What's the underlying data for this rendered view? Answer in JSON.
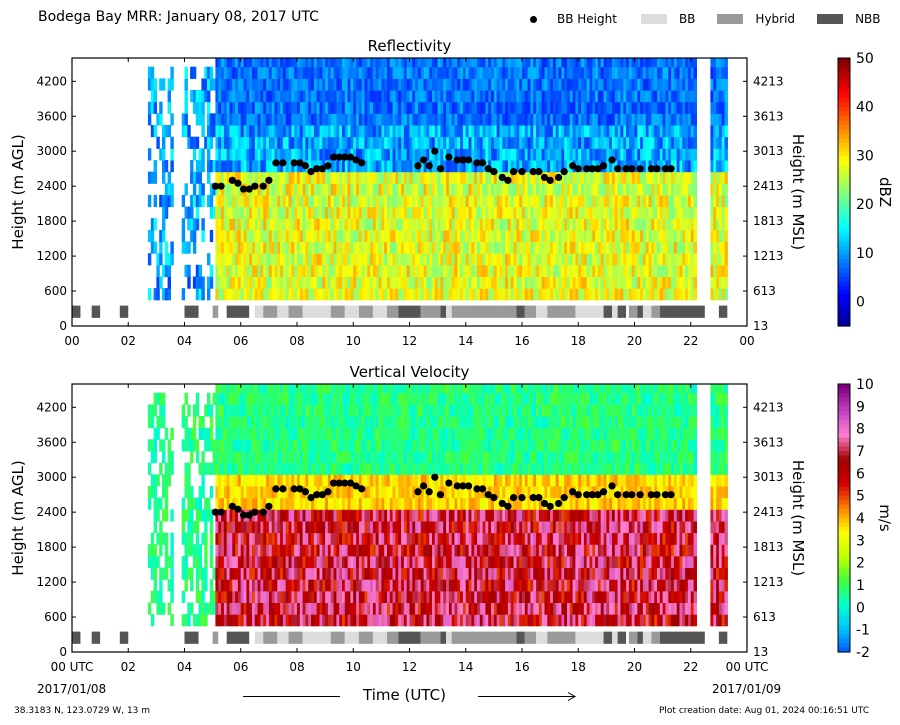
{
  "header": {
    "title": "Bodega Bay MRR:  January 08, 2017 UTC",
    "legend": [
      {
        "label": "BB Height",
        "kind": "dot",
        "color": "#000000"
      },
      {
        "label": "BB",
        "kind": "box",
        "color": "#dcdcdc"
      },
      {
        "label": "Hybrid",
        "kind": "box",
        "color": "#9a9a9a"
      },
      {
        "label": "NBB",
        "kind": "box",
        "color": "#555555"
      }
    ]
  },
  "footer": {
    "location": "38.3183 N, 123.0729 W, 13 m",
    "created": "Plot creation date: Aug 01, 2024 00:16:51 UTC",
    "xlabel": "Time (UTC)",
    "start_date": "2017/01/08",
    "end_date": "2017/01/09"
  },
  "chart_data": [
    {
      "type": "heatmap",
      "title": "Reflectivity",
      "ylabel": "Height (m AGL)",
      "ylabel_right": "Height (m MSL)",
      "colorbar_label": "dBZ",
      "xlim": [
        0,
        24
      ],
      "ylim": [
        0,
        4600
      ],
      "x_ticks": [
        "00",
        "02",
        "04",
        "06",
        "08",
        "10",
        "12",
        "14",
        "16",
        "18",
        "20",
        "22",
        "00"
      ],
      "y_ticks_left": [
        "0",
        "600",
        "1200",
        "1800",
        "2400",
        "3000",
        "3600",
        "4200"
      ],
      "y_ticks_right": [
        "13",
        "613",
        "1213",
        "1813",
        "2413",
        "3013",
        "3613",
        "4213"
      ],
      "colorbar_range": [
        -5,
        50
      ],
      "colorbar_ticks": [
        "0",
        "10",
        "20",
        "30",
        "40",
        "50"
      ],
      "colormap": [
        "#00008f",
        "#0000ff",
        "#0080ff",
        "#00ffff",
        "#80ff80",
        "#ffff00",
        "#ff8000",
        "#ff0000",
        "#800000"
      ]
    },
    {
      "type": "heatmap",
      "title": "Vertical Velocity",
      "ylabel": "Height (m AGL)",
      "ylabel_right": "Height (m MSL)",
      "colorbar_label": "m/s",
      "xlim": [
        0,
        24
      ],
      "ylim": [
        0,
        4600
      ],
      "x_ticks": [
        "00 UTC",
        "02",
        "04",
        "06",
        "08",
        "10",
        "12",
        "14",
        "16",
        "18",
        "20",
        "22",
        "00 UTC"
      ],
      "y_ticks_left": [
        "0",
        "600",
        "1200",
        "1800",
        "2400",
        "3000",
        "3600",
        "4200"
      ],
      "y_ticks_right": [
        "13",
        "613",
        "1213",
        "1813",
        "2413",
        "3013",
        "3613",
        "4213"
      ],
      "colorbar_range": [
        -2,
        10
      ],
      "colorbar_ticks": [
        "-2",
        "-1",
        "0",
        "1",
        "2",
        "3",
        "4",
        "5",
        "6",
        "7",
        "8",
        "9",
        "10"
      ],
      "colormap": [
        "#0050ff",
        "#00c0ff",
        "#00ffd0",
        "#40ff40",
        "#c0ff00",
        "#ffff00",
        "#ff8000",
        "#d00000",
        "#a00000",
        "#ff80d0",
        "#c040c0",
        "#800080"
      ]
    }
  ],
  "bb_height_series": {
    "x": [
      5.1,
      5.3,
      5.7,
      5.9,
      6.1,
      6.3,
      6.5,
      6.8,
      7.0,
      7.25,
      7.5,
      7.9,
      8.1,
      8.3,
      8.5,
      8.7,
      8.9,
      9.1,
      9.3,
      9.5,
      9.7,
      9.9,
      10.1,
      10.3,
      12.3,
      12.5,
      12.7,
      12.9,
      13.1,
      13.4,
      13.7,
      13.9,
      14.1,
      14.4,
      14.6,
      14.8,
      15.0,
      15.3,
      15.5,
      15.7,
      16.0,
      16.4,
      16.6,
      16.8,
      17.0,
      17.3,
      17.5,
      17.8,
      18.0,
      18.3,
      18.5,
      18.7,
      18.9,
      19.2,
      19.4,
      19.7,
      19.9,
      20.2,
      20.6,
      20.8,
      21.1,
      21.3
    ],
    "y": [
      2400,
      2400,
      2500,
      2450,
      2350,
      2350,
      2400,
      2400,
      2500,
      2800,
      2800,
      2800,
      2800,
      2750,
      2650,
      2700,
      2700,
      2750,
      2900,
      2900,
      2900,
      2900,
      2850,
      2800,
      2750,
      2850,
      2750,
      3000,
      2700,
      2900,
      2850,
      2850,
      2850,
      2800,
      2800,
      2700,
      2650,
      2550,
      2500,
      2650,
      2650,
      2650,
      2650,
      2550,
      2500,
      2550,
      2650,
      2750,
      2700,
      2700,
      2700,
      2700,
      2750,
      2850,
      2700,
      2700,
      2700,
      2700,
      2700,
      2700,
      2700,
      2700
    ]
  },
  "classification_bar": [
    {
      "start": 0.0,
      "end": 0.3,
      "class": "NBB"
    },
    {
      "start": 0.7,
      "end": 1.0,
      "class": "NBB"
    },
    {
      "start": 1.7,
      "end": 2.0,
      "class": "NBB"
    },
    {
      "start": 4.0,
      "end": 4.5,
      "class": "NBB"
    },
    {
      "start": 5.0,
      "end": 5.2,
      "class": "Hybrid"
    },
    {
      "start": 5.5,
      "end": 6.3,
      "class": "NBB"
    },
    {
      "start": 6.5,
      "end": 6.8,
      "class": "BB"
    },
    {
      "start": 6.8,
      "end": 7.3,
      "class": "Hybrid"
    },
    {
      "start": 7.3,
      "end": 7.7,
      "class": "BB"
    },
    {
      "start": 7.7,
      "end": 8.2,
      "class": "Hybrid"
    },
    {
      "start": 8.2,
      "end": 9.2,
      "class": "BB"
    },
    {
      "start": 9.2,
      "end": 9.7,
      "class": "Hybrid"
    },
    {
      "start": 9.7,
      "end": 10.2,
      "class": "BB"
    },
    {
      "start": 10.2,
      "end": 10.7,
      "class": "Hybrid"
    },
    {
      "start": 10.7,
      "end": 11.2,
      "class": "BB"
    },
    {
      "start": 11.2,
      "end": 11.6,
      "class": "Hybrid"
    },
    {
      "start": 11.6,
      "end": 12.4,
      "class": "NBB"
    },
    {
      "start": 12.4,
      "end": 13.1,
      "class": "Hybrid"
    },
    {
      "start": 13.1,
      "end": 13.3,
      "class": "NBB"
    },
    {
      "start": 13.3,
      "end": 13.5,
      "class": "BB"
    },
    {
      "start": 13.5,
      "end": 15.8,
      "class": "Hybrid"
    },
    {
      "start": 15.8,
      "end": 16.1,
      "class": "NBB"
    },
    {
      "start": 16.1,
      "end": 16.5,
      "class": "Hybrid"
    },
    {
      "start": 16.5,
      "end": 16.9,
      "class": "BB"
    },
    {
      "start": 16.9,
      "end": 17.9,
      "class": "Hybrid"
    },
    {
      "start": 17.9,
      "end": 18.9,
      "class": "BB"
    },
    {
      "start": 18.9,
      "end": 19.2,
      "class": "NBB"
    },
    {
      "start": 19.2,
      "end": 19.4,
      "class": "BB"
    },
    {
      "start": 19.4,
      "end": 19.7,
      "class": "NBB"
    },
    {
      "start": 19.8,
      "end": 20.1,
      "class": "Hybrid"
    },
    {
      "start": 20.1,
      "end": 20.3,
      "class": "NBB"
    },
    {
      "start": 20.3,
      "end": 20.6,
      "class": "BB"
    },
    {
      "start": 20.6,
      "end": 20.9,
      "class": "Hybrid"
    },
    {
      "start": 20.9,
      "end": 22.5,
      "class": "NBB"
    },
    {
      "start": 23.0,
      "end": 23.3,
      "class": "NBB"
    }
  ]
}
